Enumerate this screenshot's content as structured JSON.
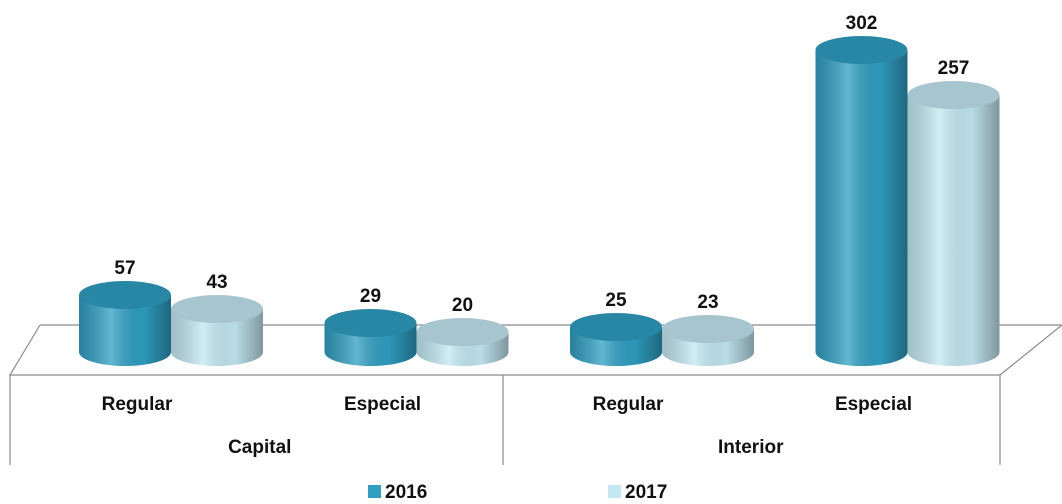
{
  "chart_data": {
    "type": "bar",
    "categories": [
      "Regular",
      "Especial",
      "Regular",
      "Especial"
    ],
    "groups": [
      "Capital",
      "Interior"
    ],
    "series": [
      {
        "name": "2016",
        "color": "#2f9fc2",
        "values": [
          57,
          29,
          25,
          302
        ]
      },
      {
        "name": "2017",
        "color": "#c3e8f2",
        "values": [
          43,
          20,
          23,
          257
        ]
      }
    ]
  }
}
